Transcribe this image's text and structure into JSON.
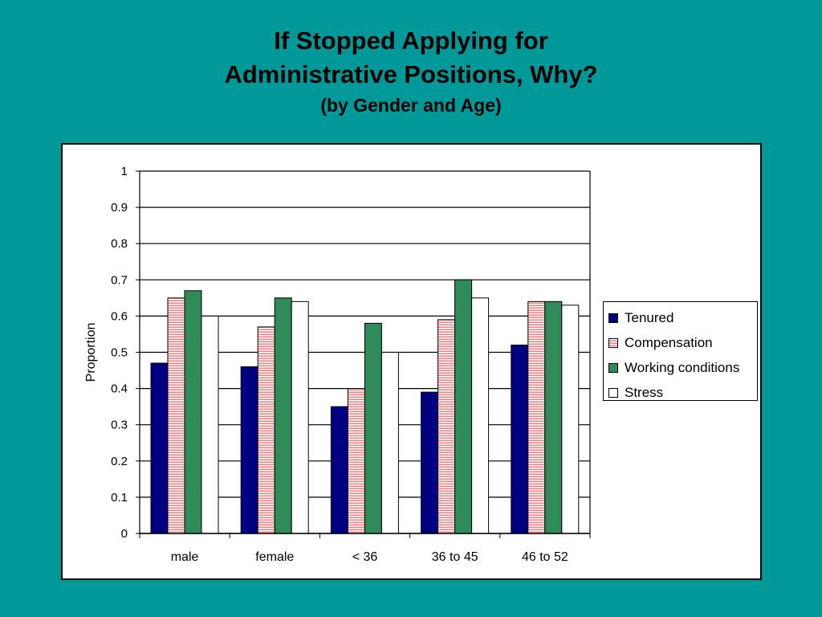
{
  "slide": {
    "title_line1": "If Stopped Applying for",
    "title_line2": "Administrative Positions, Why?",
    "title_line3": "(by Gender and Age)",
    "background_color": "#009999"
  },
  "chart_data": {
    "type": "bar",
    "title": "If Stopped Applying for Administrative Positions, Why? (by Gender and Age)",
    "xlabel": "",
    "ylabel": "Proportion",
    "ylim": [
      0,
      1
    ],
    "yticks": [
      0,
      0.1,
      0.2,
      0.3,
      0.4,
      0.5,
      0.6,
      0.7,
      0.8,
      0.9,
      1
    ],
    "grid": "horizontal",
    "legend_position": "right",
    "categories": [
      "male",
      "female",
      "< 36",
      "36 to 45",
      "46 to 52"
    ],
    "series": [
      {
        "name": "Tenured",
        "color": "#000080",
        "pattern": "solid",
        "values": [
          0.47,
          0.46,
          0.35,
          0.39,
          0.52
        ]
      },
      {
        "name": "Compensation",
        "color": "#f08080",
        "pattern": "horizontal-stripes",
        "values": [
          0.65,
          0.57,
          0.4,
          0.59,
          0.64
        ]
      },
      {
        "name": "Working conditions",
        "color": "#2e8b57",
        "pattern": "solid",
        "values": [
          0.67,
          0.65,
          0.58,
          0.7,
          0.64
        ]
      },
      {
        "name": "Stress",
        "color": "#ffffff",
        "pattern": "solid",
        "values": [
          0.6,
          0.64,
          0.5,
          0.65,
          0.63
        ]
      }
    ]
  }
}
